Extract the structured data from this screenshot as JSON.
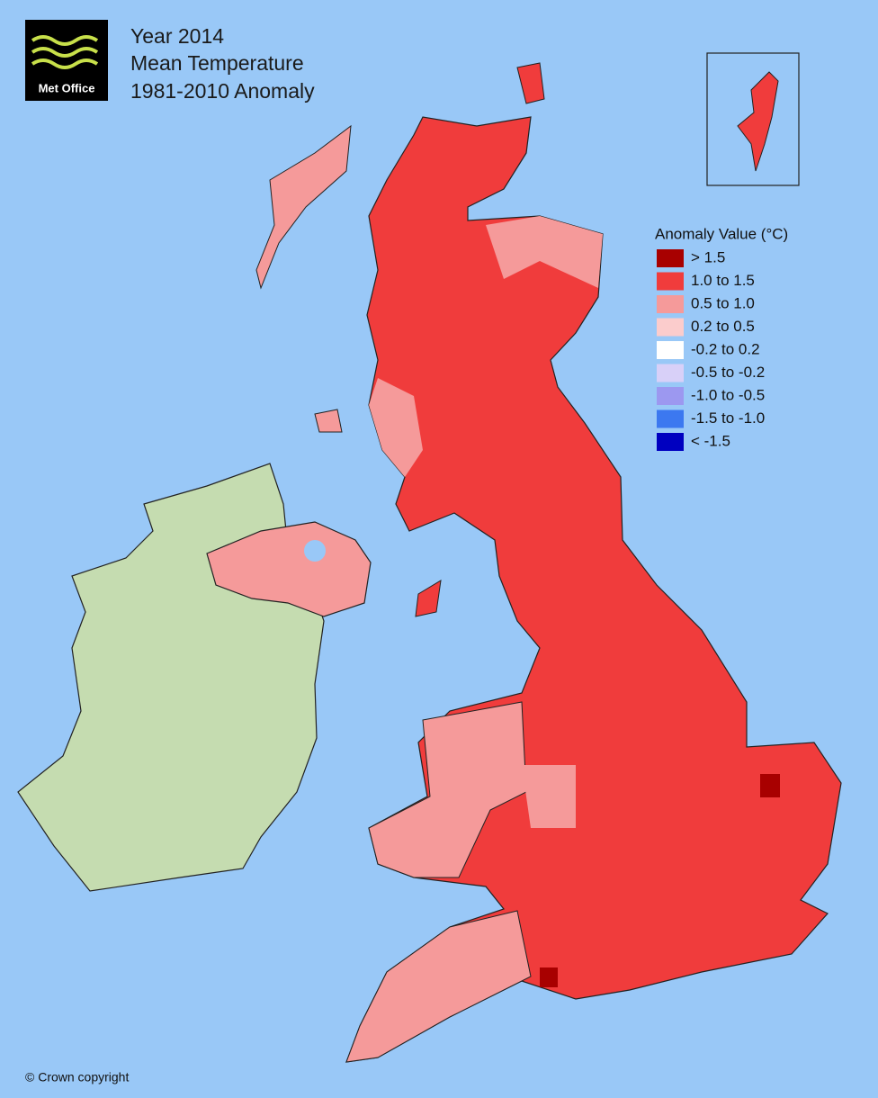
{
  "logo": {
    "text": "Met Office"
  },
  "title": [
    "Year 2014",
    "Mean Temperature",
    "1981-2010 Anomaly"
  ],
  "legend": {
    "title": "Anomaly Value (°C)",
    "items": [
      {
        "label": "> 1.5",
        "color": "#a80000"
      },
      {
        "label": "1.0 to 1.5",
        "color": "#f03c3c"
      },
      {
        "label": "0.5 to 1.0",
        "color": "#f59a9a"
      },
      {
        "label": "0.2 to 0.5",
        "color": "#fbcccc"
      },
      {
        "label": "-0.2 to 0.2",
        "color": "#ffffff"
      },
      {
        "label": "-0.5 to -0.2",
        "color": "#d8d0f8"
      },
      {
        "label": "-1.0 to -0.5",
        "color": "#9c98f0"
      },
      {
        "label": "-1.5 to -1.0",
        "color": "#3c78f0"
      },
      {
        "label": "< -1.5",
        "color": "#0000c0"
      }
    ]
  },
  "copyright": "© Crown copyright"
}
